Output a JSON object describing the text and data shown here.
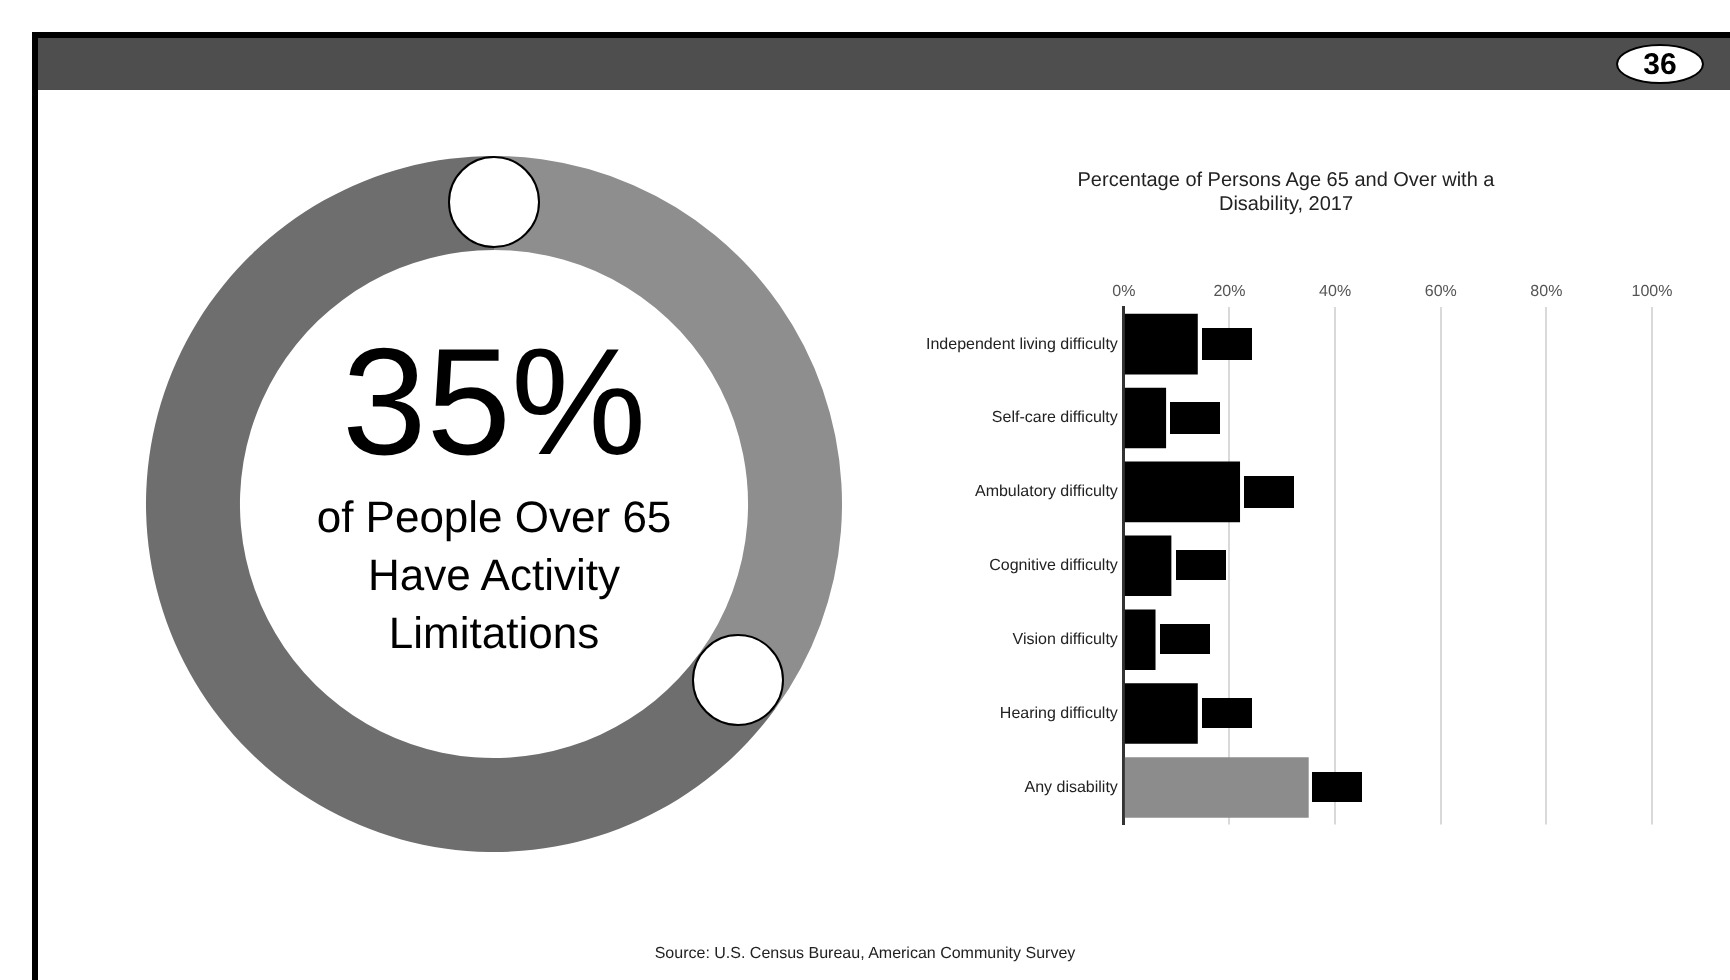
{
  "chart_data": [
    {
      "type": "donut",
      "categories": [
        null,
        null
      ],
      "values": [
        35,
        65
      ],
      "colors": [
        "#8e8e8e",
        "#6e6e6e"
      ],
      "annotations": [
        "36",
        "35%",
        "of People Over 65 Have Activity Limitations"
      ]
    },
    {
      "type": "bar",
      "orientation": "horizontal",
      "title": "Percentage of Persons Age 65 and Over with a Disability, 2017",
      "categories": [
        "Independent living difficulty",
        "Self-care difficulty",
        "Ambulatory difficulty",
        "Cognitive difficulty",
        "Vision difficulty",
        "Hearing difficulty",
        "Any disability"
      ],
      "values": [
        14,
        8,
        22,
        9,
        6,
        14,
        35
      ],
      "colors": [
        "#000000",
        "#000000",
        "#000000",
        "#000000",
        "#000000",
        "#000000",
        "#8c8c8c"
      ],
      "xlim": [
        0,
        100
      ],
      "xticks": [
        {
          "value": 0,
          "label": "0%"
        },
        {
          "value": 20,
          "label": "20%"
        },
        {
          "value": 40,
          "label": "40%"
        },
        {
          "value": 60,
          "label": "60%"
        },
        {
          "value": 80,
          "label": "80%"
        },
        {
          "value": 100,
          "label": "100%"
        }
      ],
      "grid": "x",
      "annotations": [
        "Source: U.S. Census Bureau, American Community Survey"
      ]
    }
  ]
}
